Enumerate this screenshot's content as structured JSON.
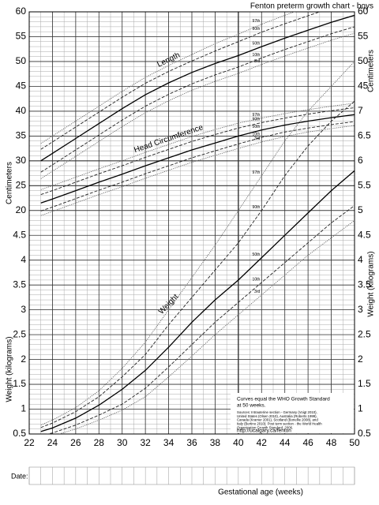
{
  "chart_data": {
    "type": "line",
    "title": "Fenton preterm growth chart - boys",
    "x_label": "Gestational age (weeks)",
    "y_label": "Centimeters",
    "y2_label": "Weight (kilograms)",
    "xlim": [
      22,
      50
    ],
    "xticks": [
      22,
      24,
      26,
      28,
      30,
      32,
      34,
      36,
      38,
      40,
      42,
      44,
      46,
      48,
      50
    ],
    "ylim": [
      -25,
      60
    ],
    "yticks": [
      20,
      25,
      30,
      35,
      40,
      45,
      50,
      55,
      60
    ],
    "y2lim": [
      0.5,
      9
    ],
    "y2ticks": [
      0.5,
      1,
      1.5,
      2,
      2.5,
      3,
      3.5,
      4,
      4.5,
      5,
      5.5,
      6,
      6.5,
      7
    ],
    "grid": true,
    "x": [
      23,
      24,
      26,
      28,
      30,
      32,
      34,
      36,
      38,
      40,
      42,
      44,
      46,
      48,
      50
    ],
    "groups": [
      {
        "label": "Length",
        "series": [
          {
            "name": "97th",
            "color": "#666",
            "dash": "dotted",
            "values": [
              33.5,
              35,
              38,
              41,
              44,
              46.8,
              49.2,
              51.4,
              53.6,
              55.5,
              57.5,
              59.3,
              61,
              62.6,
              64
            ]
          },
          {
            "name": "90th",
            "color": "#222",
            "dash": "dashed",
            "values": [
              32.3,
              33.8,
              36.8,
              39.8,
              42.8,
              45.6,
              48,
              50.1,
              52.1,
              54,
              55.9,
              57.6,
              59.2,
              60.8,
              62.2
            ]
          },
          {
            "name": "50th",
            "color": "#000",
            "dash": "solid",
            "values": [
              30,
              31.5,
              34.5,
              37.5,
              40.5,
              43.3,
              45.7,
              47.8,
              49.6,
              51.2,
              53,
              54.7,
              56.3,
              57.9,
              59.3
            ]
          },
          {
            "name": "10th",
            "color": "#222",
            "dash": "dashed",
            "values": [
              27.7,
              29.2,
              32.2,
              35.2,
              38.2,
              41,
              43.4,
              45.5,
              47.3,
              48.9,
              50.7,
              52.4,
              54,
              55.6,
              57
            ]
          },
          {
            "name": "3rd",
            "color": "#666",
            "dash": "dotted",
            "values": [
              26.4,
              27.9,
              30.9,
              33.9,
              36.9,
              39.7,
              42.1,
              44.2,
              46,
              47.6,
              49.4,
              51.1,
              52.7,
              54.3,
              55.7
            ]
          }
        ]
      },
      {
        "label": "Head Circumference",
        "series": [
          {
            "name": "97th",
            "color": "#666",
            "dash": "dotted",
            "values": [
              24.2,
              25,
              26.7,
              28.4,
              30,
              31.7,
              33.3,
              34.9,
              36.3,
              37.6,
              38.6,
              39.5,
              40.3,
              41,
              41.6
            ]
          },
          {
            "name": "90th",
            "color": "#222",
            "dash": "dashed",
            "values": [
              23.2,
              24,
              25.7,
              27.4,
              29,
              30.7,
              32.3,
              33.9,
              35.3,
              36.6,
              37.7,
              38.6,
              39.4,
              40.1,
              40.7
            ]
          },
          {
            "name": "50th",
            "color": "#000",
            "dash": "solid",
            "values": [
              21.5,
              22.3,
              24,
              25.7,
              27.3,
              29,
              30.6,
              32.2,
              33.6,
              35,
              36.2,
              37.2,
              38,
              38.7,
              39.3
            ]
          },
          {
            "name": "10th",
            "color": "#222",
            "dash": "dashed",
            "values": [
              19.9,
              20.7,
              22.4,
              24.1,
              25.7,
              27.4,
              29,
              30.6,
              32,
              33.4,
              34.7,
              35.8,
              36.6,
              37.3,
              37.9
            ]
          },
          {
            "name": "3rd",
            "color": "#666",
            "dash": "dotted",
            "values": [
              19,
              19.8,
              21.5,
              23.2,
              24.8,
              26.5,
              28.1,
              29.7,
              31.1,
              32.5,
              33.8,
              34.9,
              35.8,
              36.5,
              37.1
            ]
          }
        ]
      },
      {
        "label": "Weight",
        "series": [
          {
            "name": "97th",
            "color": "#666",
            "dash": "dotted",
            "axis": "y2",
            "values": [
              0.68,
              0.78,
              1.03,
              1.37,
              1.82,
              2.35,
              3,
              3.65,
              4.3,
              5,
              5.7,
              6.4,
              7,
              7.5,
              8
            ]
          },
          {
            "name": "90th",
            "color": "#222",
            "dash": "dashed",
            "axis": "y2",
            "values": [
              0.63,
              0.72,
              0.95,
              1.25,
              1.65,
              2.1,
              2.7,
              3.25,
              3.8,
              4.35,
              5,
              5.7,
              6.3,
              6.8,
              7.2
            ]
          },
          {
            "name": "50th",
            "color": "#000",
            "dash": "solid",
            "axis": "y2",
            "values": [
              0.55,
              0.62,
              0.82,
              1.08,
              1.4,
              1.78,
              2.25,
              2.75,
              3.2,
              3.6,
              4.05,
              4.5,
              4.95,
              5.4,
              5.8
            ]
          },
          {
            "name": "10th",
            "color": "#222",
            "dash": "dashed",
            "axis": "y2",
            "values": [
              0.47,
              0.52,
              0.68,
              0.88,
              1.1,
              1.42,
              1.85,
              2.3,
              2.75,
              3.15,
              3.55,
              3.95,
              4.35,
              4.75,
              5.1
            ]
          },
          {
            "name": "3rd",
            "color": "#666",
            "dash": "dotted",
            "axis": "y2",
            "values": [
              0.42,
              0.46,
              0.6,
              0.78,
              0.98,
              1.25,
              1.65,
              2.07,
              2.5,
              2.9,
              3.3,
              3.7,
              4.1,
              4.45,
              4.8
            ]
          }
        ]
      }
    ]
  },
  "note": {
    "title": [
      "Curves equal the WHO Growth Standard",
      "at 50 weeks."
    ],
    "sources": [
      "Sources: Intrauterine section - Germany (Voigt 2010),",
      "United States (Olsen 2010), Australia (Roberts 1999),",
      "Canada (Kramer 2001), Scotland (Bonellie 2008), and",
      "Italy (Bertino 2010); Post term section - the World Health",
      "Organization Growth Standard, 2006."
    ],
    "url": "http://ucalgary.ca/fenton"
  },
  "date_label": "Date:"
}
